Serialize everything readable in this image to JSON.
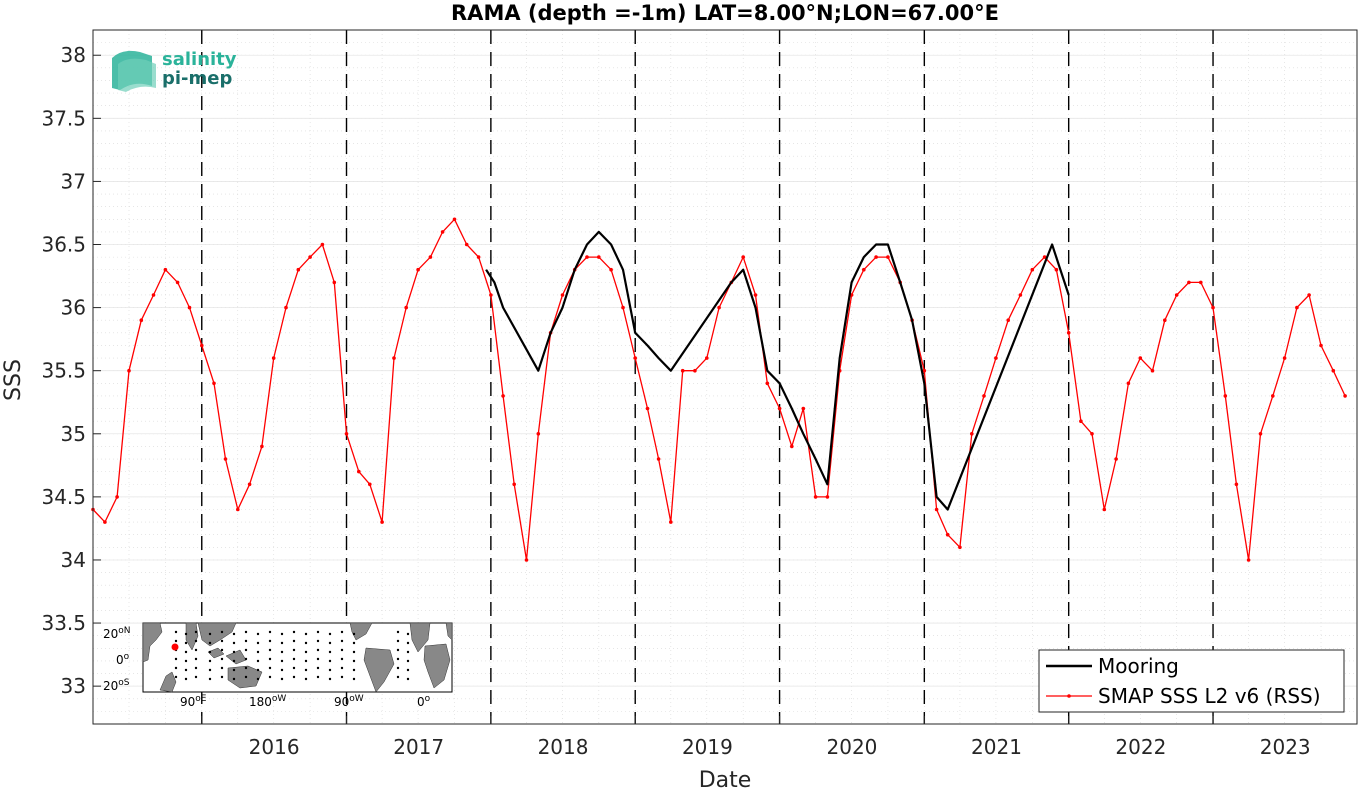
{
  "chart_data": {
    "type": "line",
    "title": "RAMA (depth =-1m) LAT=8.00°N;LON=67.00°E",
    "xlabel": "Date",
    "ylabel": "SSS",
    "xlim": [
      "2015-04-01",
      "2023-12-31"
    ],
    "ylim": [
      32.7,
      38.2
    ],
    "x_ticks": [
      "2016",
      "2017",
      "2018",
      "2019",
      "2020",
      "2021",
      "2022",
      "2023"
    ],
    "y_ticks": [
      "33",
      "33.5",
      "34",
      "34.5",
      "35",
      "35.5",
      "36",
      "36.5",
      "37",
      "37.5",
      "38"
    ],
    "grid": "minor-dotted",
    "year_boundaries": [
      "2016-01-01",
      "2017-01-01",
      "2018-01-01",
      "2019-01-01",
      "2020-01-01",
      "2021-01-01",
      "2022-01-01",
      "2023-01-01"
    ],
    "legend_position": "bottom-right",
    "series": [
      {
        "name": "Mooring",
        "color": "#000000",
        "x": [
          "2017-12-20",
          "2018-01-10",
          "2018-02-01",
          "2018-05-01",
          "2018-06-01",
          "2018-07-01",
          "2018-08-01",
          "2018-09-01",
          "2018-10-01",
          "2018-11-01",
          "2018-12-01",
          "2019-01-01",
          "2019-02-01",
          "2019-03-01",
          "2019-04-01",
          "2019-09-01",
          "2019-10-01",
          "2019-11-01",
          "2019-12-01",
          "2020-01-01",
          "2020-02-01",
          "2020-03-01",
          "2020-04-01",
          "2020-05-01",
          "2020-06-01",
          "2020-07-01",
          "2020-08-01",
          "2020-09-01",
          "2020-10-01",
          "2020-11-01",
          "2020-12-01",
          "2021-01-01",
          "2021-02-01",
          "2021-03-01",
          "2021-11-20",
          "2022-01-01"
        ],
        "y": [
          36.3,
          36.2,
          36.0,
          35.5,
          35.8,
          36.0,
          36.3,
          36.5,
          36.6,
          36.5,
          36.3,
          35.8,
          35.7,
          35.6,
          35.5,
          36.2,
          36.3,
          36.0,
          35.5,
          35.4,
          35.2,
          35.0,
          34.8,
          34.6,
          35.6,
          36.2,
          36.4,
          36.5,
          36.5,
          36.2,
          35.9,
          35.4,
          34.5,
          34.4,
          36.5,
          36.1
        ]
      },
      {
        "name": "SMAP SSS L2 v6 (RSS)",
        "color": "#ff0000",
        "x": [
          "2015-04-01",
          "2015-05-01",
          "2015-06-01",
          "2015-07-01",
          "2015-08-01",
          "2015-09-01",
          "2015-10-01",
          "2015-11-01",
          "2015-12-01",
          "2016-01-01",
          "2016-02-01",
          "2016-03-01",
          "2016-04-01",
          "2016-05-01",
          "2016-06-01",
          "2016-07-01",
          "2016-08-01",
          "2016-09-01",
          "2016-10-01",
          "2016-11-01",
          "2016-12-01",
          "2017-01-01",
          "2017-02-01",
          "2017-03-01",
          "2017-04-01",
          "2017-05-01",
          "2017-06-01",
          "2017-07-01",
          "2017-08-01",
          "2017-09-01",
          "2017-10-01",
          "2017-11-01",
          "2017-12-01",
          "2018-01-01",
          "2018-02-01",
          "2018-03-01",
          "2018-04-01",
          "2018-05-01",
          "2018-06-01",
          "2018-07-01",
          "2018-08-01",
          "2018-09-01",
          "2018-10-01",
          "2018-11-01",
          "2018-12-01",
          "2019-01-01",
          "2019-02-01",
          "2019-03-01",
          "2019-04-01",
          "2019-05-01",
          "2019-06-01",
          "2019-07-01",
          "2019-08-01",
          "2019-09-01",
          "2019-10-01",
          "2019-11-01",
          "2019-12-01",
          "2020-01-01",
          "2020-02-01",
          "2020-03-01",
          "2020-04-01",
          "2020-05-01",
          "2020-06-01",
          "2020-07-01",
          "2020-08-01",
          "2020-09-01",
          "2020-10-01",
          "2020-11-01",
          "2020-12-01",
          "2021-01-01",
          "2021-02-01",
          "2021-03-01",
          "2021-04-01",
          "2021-05-01",
          "2021-06-01",
          "2021-07-01",
          "2021-08-01",
          "2021-09-01",
          "2021-10-01",
          "2021-11-01",
          "2021-12-01",
          "2022-01-01",
          "2022-02-01",
          "2022-03-01",
          "2022-04-01",
          "2022-05-01",
          "2022-06-01",
          "2022-07-01",
          "2022-08-01",
          "2022-09-01",
          "2022-10-01",
          "2022-11-01",
          "2022-12-01",
          "2023-01-01",
          "2023-02-01",
          "2023-03-01",
          "2023-04-01",
          "2023-05-01",
          "2023-06-01",
          "2023-07-01",
          "2023-08-01",
          "2023-09-01",
          "2023-10-01",
          "2023-11-01",
          "2023-12-01"
        ],
        "y": [
          34.4,
          34.3,
          34.5,
          35.5,
          35.9,
          36.1,
          36.3,
          36.2,
          36.0,
          35.7,
          35.4,
          34.8,
          34.4,
          34.6,
          34.9,
          35.6,
          36.0,
          36.3,
          36.4,
          36.5,
          36.2,
          35.0,
          34.7,
          34.6,
          34.3,
          35.6,
          36.0,
          36.3,
          36.4,
          36.6,
          36.7,
          36.5,
          36.4,
          36.1,
          35.3,
          34.6,
          34.0,
          35.0,
          35.8,
          36.1,
          36.3,
          36.4,
          36.4,
          36.3,
          36.0,
          35.6,
          35.2,
          34.8,
          34.3,
          35.5,
          35.5,
          35.6,
          36.0,
          36.2,
          36.4,
          36.1,
          35.4,
          35.2,
          34.9,
          35.2,
          34.5,
          34.5,
          35.5,
          36.1,
          36.3,
          36.4,
          36.4,
          36.2,
          35.9,
          35.5,
          34.4,
          34.2,
          34.1,
          35.0,
          35.3,
          35.6,
          35.9,
          36.1,
          36.3,
          36.4,
          36.3,
          35.8,
          35.1,
          35.0,
          34.4,
          34.8,
          35.4,
          35.6,
          35.5,
          35.9,
          36.1,
          36.2,
          36.2,
          36.0,
          35.3,
          34.6,
          34.0,
          35.0,
          35.3,
          35.6,
          36.0,
          36.1,
          35.7,
          35.5,
          35.3
        ]
      }
    ]
  },
  "logo": {
    "line1": "salinity",
    "line2": "pi-mep"
  },
  "inset_map": {
    "lat_labels": [
      "20",
      "0",
      "20"
    ],
    "lat_units": [
      "oN",
      "o",
      "oS"
    ],
    "lon_labels": [
      "90",
      "180",
      "90",
      "0"
    ],
    "lon_units": [
      "oE",
      "oW",
      "oW",
      "o"
    ],
    "marker_color": "#ff0000",
    "land_color": "#888888",
    "ocean_color": "#ffffff"
  }
}
